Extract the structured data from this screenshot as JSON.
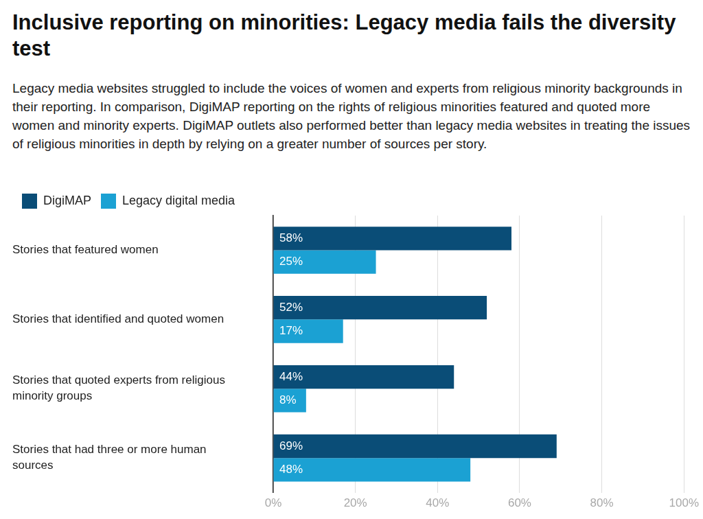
{
  "chart_data": {
    "type": "bar",
    "orientation": "horizontal",
    "title": "Inclusive reporting on minorities: Legacy media fails the diversity test",
    "subtitle": "Legacy media websites struggled to include the voices of women and experts from religious minority backgrounds in their reporting. In comparison, DigiMAP reporting on the rights of religious minorities featured and quoted more women and minority experts. DigiMAP outlets also performed better than legacy media websites in treating the issues of religious minorities in depth by relying on a greater number of sources per story.",
    "categories": [
      "Stories that featured women",
      "Stories that identified and quoted women",
      "Stories that quoted experts from religious minority groups",
      "Stories that had three or more human sources"
    ],
    "series": [
      {
        "name": "DigiMAP",
        "color": "#0a4d77",
        "values": [
          58,
          52,
          44,
          69
        ],
        "value_labels": [
          "58%",
          "52%",
          "44%",
          "69%"
        ]
      },
      {
        "name": "Legacy digital media",
        "color": "#1ba1d3",
        "values": [
          25,
          17,
          8,
          48
        ],
        "value_labels": [
          "25%",
          "17%",
          "8%",
          "48%"
        ]
      }
    ],
    "xlim": [
      0,
      100
    ],
    "xticks": [
      {
        "value": 0,
        "label": "0%"
      },
      {
        "value": 20,
        "label": "20%"
      },
      {
        "value": 40,
        "label": "40%"
      },
      {
        "value": 60,
        "label": "60%"
      },
      {
        "value": 80,
        "label": "80%"
      },
      {
        "value": 100,
        "label": "100%"
      }
    ],
    "grid": true,
    "legend": "top-left",
    "data_labels": true
  }
}
